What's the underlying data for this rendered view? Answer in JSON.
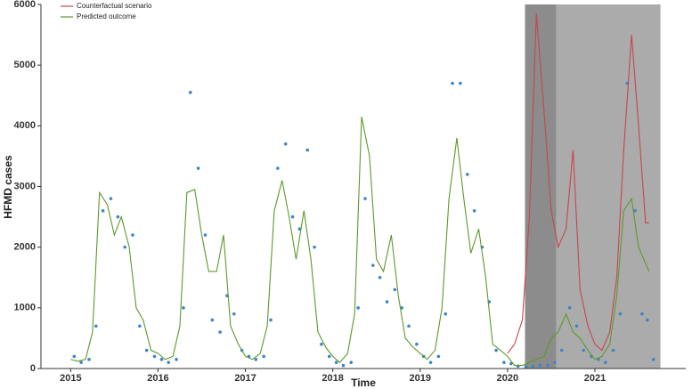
{
  "chart_data": {
    "type": "line",
    "xlabel": "Time",
    "ylabel": "HFMD cases",
    "xlim": [
      2014.66,
      2022.04
    ],
    "xticks": [
      2015,
      2016,
      2017,
      2018,
      2019,
      2020,
      2021
    ],
    "ylim": [
      0,
      6000
    ],
    "yticks": [
      0,
      1000,
      2000,
      3000,
      4000,
      5000,
      6000
    ],
    "grid": false,
    "legend": "top-left",
    "shaded_regions": [
      {
        "x": [
          2020.2,
          2020.56
        ],
        "color": "#8c8c8c"
      },
      {
        "x": [
          2020.56,
          2021.75
        ],
        "color": "#ababab"
      }
    ],
    "series": [
      {
        "name": "Counterfactual scenario",
        "type": "line",
        "color": "#c8454d",
        "x": [
          2020.0,
          2020.08,
          2020.17,
          2020.25,
          2020.33,
          2020.42,
          2020.5,
          2020.58,
          2020.67,
          2020.75,
          2020.83,
          2020.92,
          2021.0,
          2021.08,
          2021.17,
          2021.25,
          2021.33,
          2021.42,
          2021.5,
          2021.58,
          2021.62
        ],
        "values": [
          250,
          400,
          800,
          2500,
          5850,
          4200,
          2600,
          2000,
          2300,
          3600,
          1300,
          700,
          400,
          300,
          600,
          1500,
          3600,
          5500,
          4000,
          2400,
          2400
        ]
      },
      {
        "name": "Predicted outcome",
        "type": "line",
        "color": "#5a9a2a",
        "x": [
          2015.0,
          2015.08,
          2015.17,
          2015.25,
          2015.33,
          2015.42,
          2015.5,
          2015.58,
          2015.67,
          2015.75,
          2015.83,
          2015.92,
          2016.0,
          2016.08,
          2016.17,
          2016.25,
          2016.33,
          2016.42,
          2016.5,
          2016.58,
          2016.67,
          2016.75,
          2016.83,
          2016.92,
          2017.0,
          2017.08,
          2017.17,
          2017.25,
          2017.33,
          2017.42,
          2017.5,
          2017.58,
          2017.67,
          2017.75,
          2017.83,
          2017.92,
          2018.0,
          2018.08,
          2018.17,
          2018.25,
          2018.33,
          2018.42,
          2018.5,
          2018.58,
          2018.67,
          2018.75,
          2018.83,
          2018.92,
          2019.0,
          2019.08,
          2019.17,
          2019.25,
          2019.33,
          2019.42,
          2019.5,
          2019.58,
          2019.67,
          2019.75,
          2019.83,
          2019.92,
          2020.0,
          2020.08,
          2020.17,
          2020.25,
          2020.33,
          2020.42,
          2020.5,
          2020.58,
          2020.67,
          2020.75,
          2020.83,
          2020.92,
          2021.0,
          2021.08,
          2021.17,
          2021.25,
          2021.33,
          2021.42,
          2021.5,
          2021.62
        ],
        "values": [
          150,
          120,
          150,
          600,
          2900,
          2700,
          2200,
          2500,
          2000,
          1000,
          800,
          300,
          250,
          150,
          200,
          700,
          2900,
          2950,
          2200,
          1600,
          1600,
          2200,
          700,
          400,
          200,
          150,
          250,
          700,
          2600,
          3100,
          2500,
          1800,
          2600,
          1800,
          600,
          350,
          200,
          100,
          250,
          900,
          4150,
          3500,
          1800,
          1600,
          2200,
          1200,
          500,
          350,
          250,
          150,
          300,
          1000,
          2800,
          3800,
          2800,
          1900,
          2300,
          1500,
          400,
          300,
          200,
          50,
          50,
          100,
          150,
          200,
          500,
          600,
          900,
          600,
          500,
          300,
          150,
          200,
          400,
          1200,
          2600,
          2800,
          2000,
          1600
        ]
      },
      {
        "type": "scatter",
        "color": "#3d85c6",
        "x": [
          2015.04,
          2015.12,
          2015.21,
          2015.29,
          2015.37,
          2015.46,
          2015.54,
          2015.62,
          2015.71,
          2015.79,
          2015.87,
          2015.96,
          2016.04,
          2016.12,
          2016.21,
          2016.29,
          2016.37,
          2016.46,
          2016.54,
          2016.62,
          2016.71,
          2016.79,
          2016.87,
          2016.96,
          2017.04,
          2017.12,
          2017.21,
          2017.29,
          2017.37,
          2017.46,
          2017.54,
          2017.62,
          2017.71,
          2017.79,
          2017.87,
          2017.96,
          2018.04,
          2018.12,
          2018.21,
          2018.29,
          2018.37,
          2018.46,
          2018.54,
          2018.62,
          2018.71,
          2018.79,
          2018.87,
          2018.96,
          2019.04,
          2019.12,
          2019.21,
          2019.29,
          2019.37,
          2019.46,
          2019.54,
          2019.62,
          2019.71,
          2019.79,
          2019.87,
          2019.96,
          2020.04,
          2020.12,
          2020.21,
          2020.29,
          2020.37,
          2020.46,
          2020.54,
          2020.62,
          2020.71,
          2020.79,
          2020.87,
          2020.96,
          2021.04,
          2021.12,
          2021.21,
          2021.29,
          2021.37,
          2021.46,
          2021.54,
          2021.6,
          2021.67
        ],
        "values": [
          200,
          100,
          150,
          700,
          2600,
          2800,
          2500,
          2000,
          2200,
          700,
          300,
          200,
          150,
          100,
          150,
          1000,
          4550,
          3300,
          2200,
          800,
          600,
          1200,
          900,
          300,
          200,
          150,
          200,
          800,
          3300,
          3700,
          2500,
          2300,
          3600,
          2000,
          400,
          200,
          100,
          50,
          100,
          1000,
          2800,
          1700,
          1500,
          1100,
          1300,
          1000,
          700,
          400,
          200,
          100,
          200,
          900,
          4700,
          4700,
          3200,
          2600,
          2000,
          1100,
          300,
          100,
          80,
          40,
          30,
          40,
          50,
          50,
          100,
          300,
          1000,
          700,
          300,
          200,
          150,
          100,
          300,
          900,
          4700,
          2600,
          900,
          800,
          150
        ]
      }
    ]
  }
}
